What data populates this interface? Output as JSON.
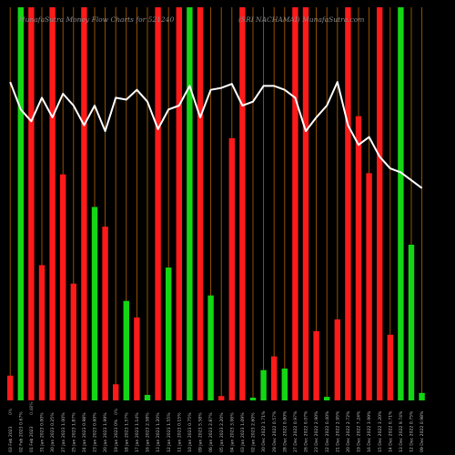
{
  "chart_data": {
    "type": "bar",
    "title_left": "MunafaSutra  Money Flow  Charts for 521240",
    "title_right": "(SRI NACHAMAI)   MunafaSutra.com",
    "colors": {
      "up": "#14d614",
      "down": "#ff1a1a",
      "line": "#ffffff",
      "grid": "#a65a00",
      "background": "#000000"
    },
    "ylim": [
      0,
      100
    ],
    "line_ylim": [
      0,
      100
    ],
    "grid": "vertical",
    "percent_labels": [
      "0%",
      "0.48%",
      "0%"
    ],
    "bars": [
      {
        "label": "03 Feb 2023",
        "value": 6.3,
        "dir": "down"
      },
      {
        "label": "02 Feb 2023 0.67%",
        "value": 100,
        "dir": "up"
      },
      {
        "label": "01 Feb 2023",
        "value": 100,
        "dir": "down"
      },
      {
        "label": "31 Jan 2023 0.00%",
        "value": 34.4,
        "dir": "down"
      },
      {
        "label": "30 Jan 2023 0.25%",
        "value": 100,
        "dir": "down"
      },
      {
        "label": "27 Jan 2023 1.00%",
        "value": 57.5,
        "dir": "down"
      },
      {
        "label": "25 Jan 2023 1.87%",
        "value": 29.7,
        "dir": "down"
      },
      {
        "label": "24 Jan 2023 0.98%",
        "value": 100,
        "dir": "down"
      },
      {
        "label": "23 Jan 2023 0.60%",
        "value": 49.2,
        "dir": "up"
      },
      {
        "label": "20 Jan 2023 1.99%",
        "value": 44.2,
        "dir": "down"
      },
      {
        "label": "19 Jan 2023 0%",
        "value": 4.1,
        "dir": "down"
      },
      {
        "label": "18 Jan 2023 1.57%",
        "value": 25.3,
        "dir": "up"
      },
      {
        "label": "17 Jan 2023 1.14%",
        "value": 21.1,
        "dir": "down"
      },
      {
        "label": "16 Jan 2023 2.58%",
        "value": 1.4,
        "dir": "up"
      },
      {
        "label": "13 Jan 2023 1.20%",
        "value": 100,
        "dir": "down"
      },
      {
        "label": "12 Jan 2023 1.55%",
        "value": 33.8,
        "dir": "up"
      },
      {
        "label": "11 Jan 2023 0.15%",
        "value": 100,
        "dir": "down"
      },
      {
        "label": "10 Jan 2023 0.75%",
        "value": 100,
        "dir": "up"
      },
      {
        "label": "09 Jan 2023 5.58%",
        "value": 100,
        "dir": "down"
      },
      {
        "label": "06 Jan 2023 2.87%",
        "value": 26.7,
        "dir": "up"
      },
      {
        "label": "05 Jan 2023 2.20%",
        "value": 1.1,
        "dir": "down"
      },
      {
        "label": "04 Jan 2023 3.06%",
        "value": 66.7,
        "dir": "down"
      },
      {
        "label": "03 Jan 2023 1.09%",
        "value": 100,
        "dir": "down"
      },
      {
        "label": "02 Jan 2023 2.60%",
        "value": 0.7,
        "dir": "up"
      },
      {
        "label": "30 Dec 2022 1.71%",
        "value": 7.7,
        "dir": "up"
      },
      {
        "label": "29 Dec 2022 0.57%",
        "value": 11.2,
        "dir": "down"
      },
      {
        "label": "28 Dec 2022 0.80%",
        "value": 8.1,
        "dir": "up"
      },
      {
        "label": "27 Dec 2022 0.97%",
        "value": 100,
        "dir": "down"
      },
      {
        "label": "26 Dec 2022 0.07%",
        "value": 100,
        "dir": "down"
      },
      {
        "label": "23 Dec 2022 2.90%",
        "value": 17.6,
        "dir": "down"
      },
      {
        "label": "22 Dec 2022 0.40%",
        "value": 0.9,
        "dir": "up"
      },
      {
        "label": "21 Dec 2022 2.95%",
        "value": 20.6,
        "dir": "down"
      },
      {
        "label": "20 Dec 2022 2.72%",
        "value": 100,
        "dir": "down"
      },
      {
        "label": "19 Dec 2022 7.24%",
        "value": 72.3,
        "dir": "down"
      },
      {
        "label": "16 Dec 2022 3.99%",
        "value": 57.8,
        "dir": "down"
      },
      {
        "label": "15 Dec 2022 3.20%",
        "value": 100,
        "dir": "down"
      },
      {
        "label": "14 Dec 2022 0.71%",
        "value": 16.7,
        "dir": "down"
      },
      {
        "label": "13 Dec 2022 9.74%",
        "value": 100,
        "dir": "up"
      },
      {
        "label": "12 Dec 2022 0.75%",
        "value": 39.6,
        "dir": "up"
      },
      {
        "label": "09 Dec 2022 0.98%",
        "value": 1.9,
        "dir": "up"
      }
    ],
    "line_values": [
      81.0,
      74.0,
      71.0,
      77.0,
      72.0,
      78.0,
      75.0,
      70.0,
      75.0,
      68.5,
      77.0,
      76.5,
      79.0,
      76.0,
      69.0,
      74.0,
      75.0,
      80.0,
      72.0,
      79.0,
      79.5,
      80.5,
      75.0,
      76.0,
      80.0,
      80.0,
      79.0,
      77.0,
      68.5,
      72.0,
      75.0,
      81.0,
      70.0,
      65.0,
      67.0,
      62.0,
      59.0,
      58.0,
      56.0,
      54.0
    ]
  }
}
